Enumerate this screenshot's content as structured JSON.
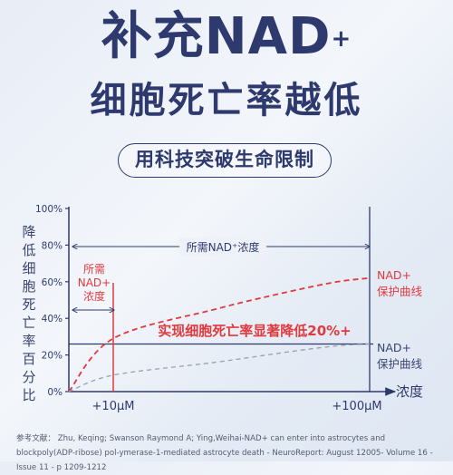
{
  "header": {
    "title_line1_main": "补充NAD",
    "title_line1_sup": "+",
    "title_line2": "细胞死亡率越低",
    "pill_text": "用科技突破生命限制"
  },
  "chart_data": {
    "type": "line",
    "ylabel": "降低细胞死亡率百分比",
    "xlabel": "浓度",
    "ylim": [
      0,
      100
    ],
    "y_ticks": [
      "0%",
      "20%",
      "40%",
      "60%",
      "80%",
      "100%"
    ],
    "x_ticks": [
      "+10μM",
      "+100μM"
    ],
    "series": [
      {
        "name": "NAD+保护曲线",
        "color": "#e0393e",
        "style": "dashed",
        "x": [
          0,
          10,
          25,
          50,
          75,
          100
        ],
        "y": [
          0,
          29,
          45,
          55,
          60,
          62
        ]
      },
      {
        "name": "NAD+保护曲线",
        "color": "#9aa0b0",
        "style": "dashed",
        "x": [
          0,
          10,
          25,
          50,
          75,
          100
        ],
        "y": [
          0,
          9,
          16,
          22,
          25,
          26
        ]
      }
    ],
    "reference_lines": {
      "horizontal_y": 26,
      "vertical_x": [
        10,
        100
      ]
    },
    "annotations": {
      "range_label": "所需NAD⁺浓度",
      "required_label": [
        "所需",
        "NAD+",
        "浓度"
      ],
      "highlight": "实现细胞死亡率显著降低20%+",
      "red_curve_label": [
        "NAD+",
        "保护曲线"
      ],
      "gray_curve_label": [
        "NAD+",
        "保护曲线"
      ]
    },
    "colors": {
      "axis": "#2e3a6e",
      "red": "#e0393e",
      "gray": "#9aa0b0"
    }
  },
  "reference": "参考文献： Zhu, Keqing; Swanson Raymond A; Ying,Weihai-NAD+ can enter into astrocytes and blockpoly(ADP-ribose) pol-ymerase-1-mediated astrocyte death - NeuroReport: August 12005- Volume 16 - Issue 11 - p 1209-1212"
}
